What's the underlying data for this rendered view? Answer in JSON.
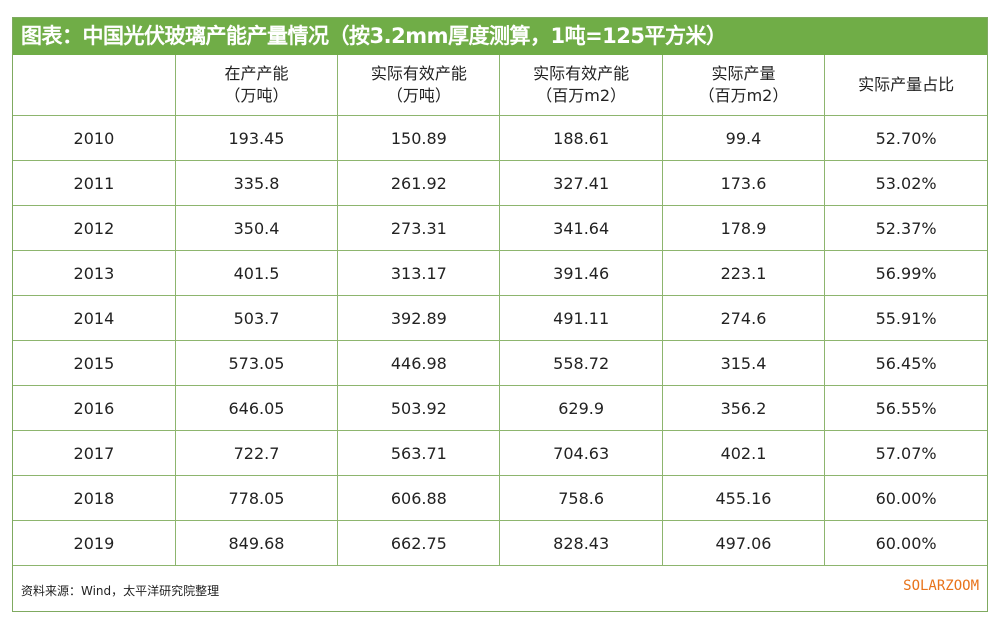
{
  "title": "图表：中国光伏玻璃产能产量情况（按3.2mm厚度测算，1吨=125平方米）",
  "columns": [
    {
      "line1": "",
      "line2": ""
    },
    {
      "line1": "在产产能",
      "line2": "（万吨）"
    },
    {
      "line1": "实际有效产能",
      "line2": "（万吨）"
    },
    {
      "line1": "实际有效产能",
      "line2": "（百万m2）"
    },
    {
      "line1": "实际产量",
      "line2": "（百万m2）"
    },
    {
      "line1": "实际产量占比",
      "line2": ""
    }
  ],
  "rows": [
    [
      "2010",
      "193.45",
      "150.89",
      "188.61",
      "99.4",
      "52.70%"
    ],
    [
      "2011",
      "335.8",
      "261.92",
      "327.41",
      "173.6",
      "53.02%"
    ],
    [
      "2012",
      "350.4",
      "273.31",
      "341.64",
      "178.9",
      "52.37%"
    ],
    [
      "2013",
      "401.5",
      "313.17",
      "391.46",
      "223.1",
      "56.99%"
    ],
    [
      "2014",
      "503.7",
      "392.89",
      "491.11",
      "274.6",
      "55.91%"
    ],
    [
      "2015",
      "573.05",
      "446.98",
      "558.72",
      "315.4",
      "56.45%"
    ],
    [
      "2016",
      "646.05",
      "503.92",
      "629.9",
      "356.2",
      "56.55%"
    ],
    [
      "2017",
      "722.7",
      "563.71",
      "704.63",
      "402.1",
      "57.07%"
    ],
    [
      "2018",
      "778.05",
      "606.88",
      "758.6",
      "455.16",
      "60.00%"
    ],
    [
      "2019",
      "849.68",
      "662.75",
      "828.43",
      "497.06",
      "60.00%"
    ]
  ],
  "footer": {
    "source": "资料来源：Wind，太平洋研究院整理",
    "logo": "SOLARZOOM"
  },
  "colors": {
    "title_bg": "#70ad47",
    "border": "#8db56e",
    "logo": "#e8731a"
  }
}
